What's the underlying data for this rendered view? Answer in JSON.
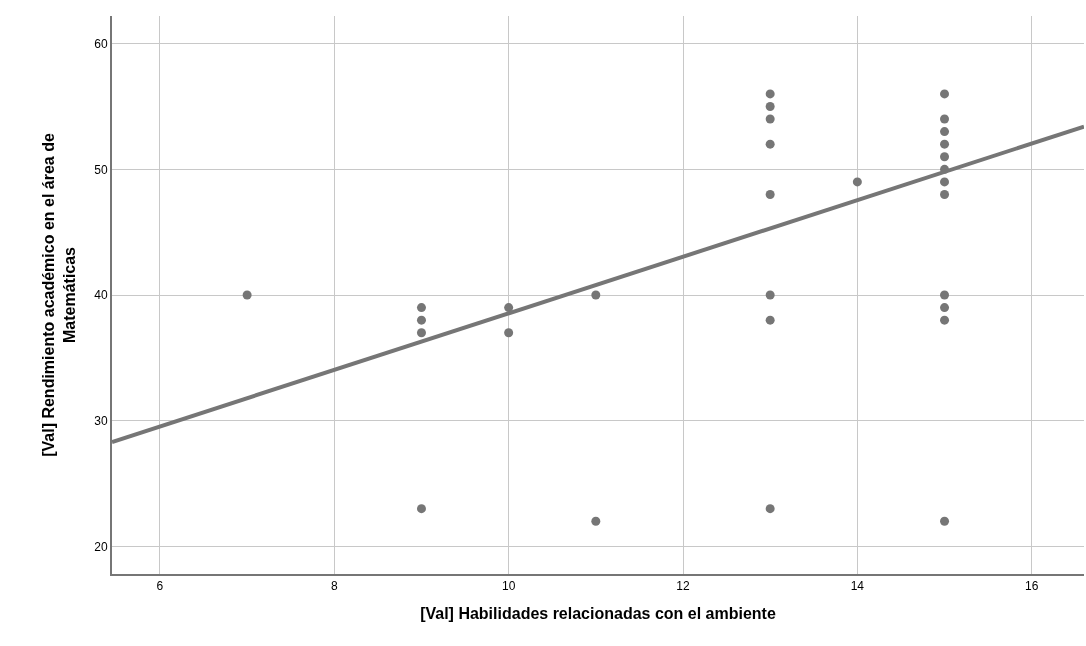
{
  "chart_data": {
    "type": "scatter",
    "xlabel": "[Val] Habilidades relacionadas con el ambiente",
    "ylabel": "[Val] Rendimiento académico en el área de\nMatemáticas",
    "xlim": [
      5.45,
      16.6
    ],
    "xticks": [
      6,
      8,
      10,
      12,
      14,
      16
    ],
    "ylim": [
      17.8,
      62.2
    ],
    "yticks": [
      20,
      30,
      40,
      50,
      60
    ],
    "grid": true,
    "series": [
      {
        "color": "#767676",
        "marker": "circle",
        "x": [
          7,
          9,
          9,
          9,
          9,
          10,
          10,
          11,
          11,
          13,
          13,
          13,
          13,
          13,
          13,
          13,
          13,
          14,
          15,
          15,
          15,
          15,
          15,
          15,
          15,
          15,
          15,
          15,
          15,
          15
        ],
        "values": [
          40,
          39,
          38,
          37,
          23,
          39,
          37,
          40,
          22,
          56,
          55,
          54,
          52,
          48,
          40,
          38,
          23,
          49,
          56,
          54,
          53,
          52,
          51,
          50,
          49,
          48,
          40,
          39,
          38,
          22
        ]
      },
      {
        "type": "line",
        "color": "#767676",
        "x": [
          5.45,
          16.6
        ],
        "values": [
          28.3,
          53.4
        ]
      }
    ]
  }
}
